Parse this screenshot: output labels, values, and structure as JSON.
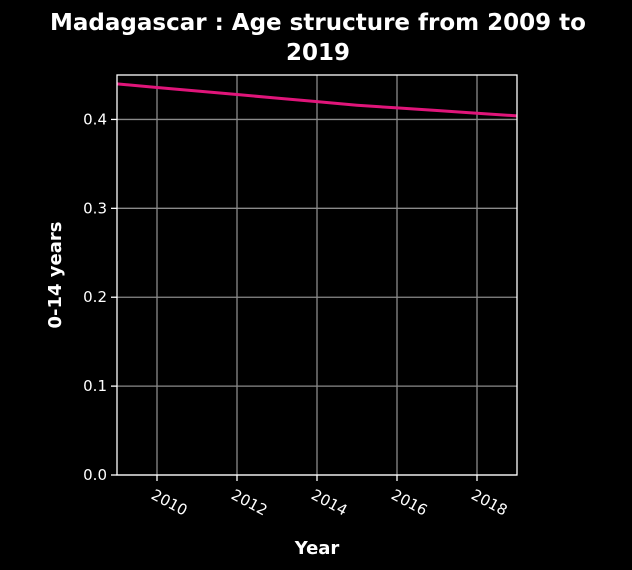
{
  "chart_data": {
    "type": "line",
    "title_line1": "Madagascar : Age structure from 2009 to",
    "title_line2": "2019",
    "xlabel": "Year",
    "ylabel": "0-14 years",
    "x": [
      2009,
      2010,
      2011,
      2012,
      2013,
      2014,
      2015,
      2016,
      2017,
      2018,
      2019
    ],
    "series": [
      {
        "values": [
          0.44,
          0.436,
          0.432,
          0.428,
          0.424,
          0.42,
          0.416,
          0.413,
          0.41,
          0.407,
          0.404
        ]
      }
    ],
    "xlim": [
      2009,
      2019
    ],
    "ylim": [
      0.0,
      0.45
    ],
    "xticks": [
      2010,
      2012,
      2014,
      2016,
      2018
    ],
    "yticks": [
      "0.0",
      "0.1",
      "0.2",
      "0.3",
      "0.4"
    ],
    "grid": true,
    "colors": {
      "background": "#000000",
      "line": "#e0157a",
      "grid": "#8a8a8a",
      "text": "#ffffff"
    }
  }
}
